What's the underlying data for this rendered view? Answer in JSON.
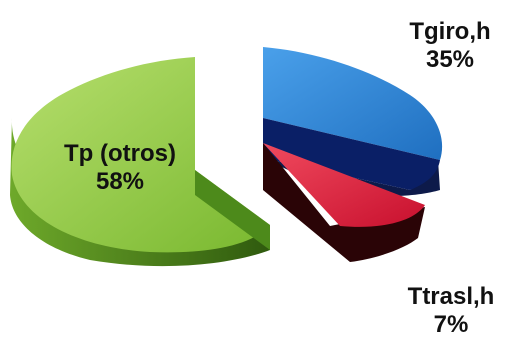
{
  "chart_data": {
    "type": "pie",
    "style": "3d-exploded",
    "title": "",
    "slices": [
      {
        "label": "Tp (otros)",
        "value": 58,
        "value_label": "58%",
        "color": "#8ccb3e"
      },
      {
        "label": "Tgiro,h",
        "value": 35,
        "value_label": "35%",
        "color": "#2f86d8"
      },
      {
        "label": "Ttrasl,h",
        "value": 7,
        "value_label": "7%",
        "color": "#e3253e"
      }
    ]
  }
}
